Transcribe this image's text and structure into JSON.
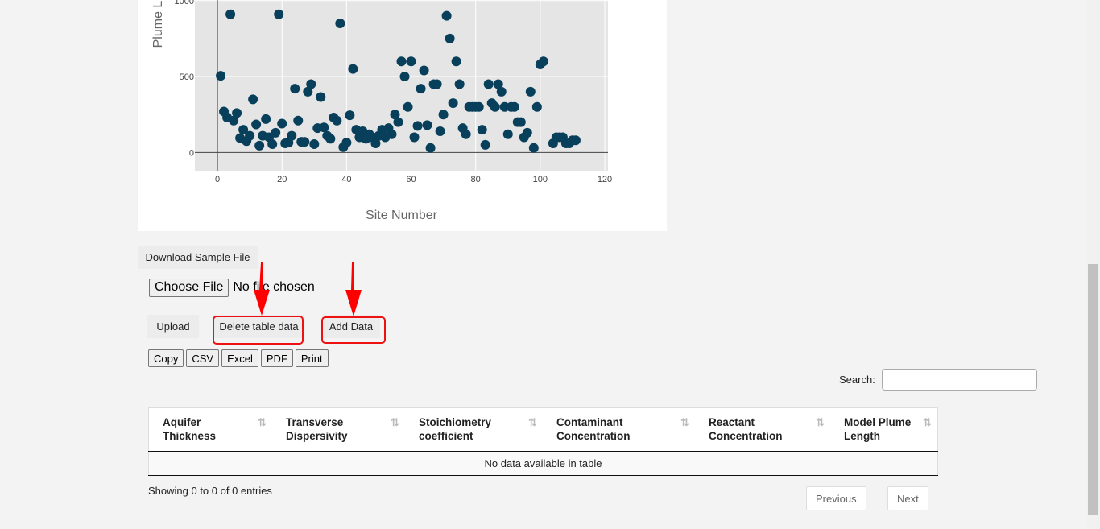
{
  "chart_data": {
    "type": "scatter",
    "xlabel": "Site Number",
    "ylabel": "Plume Length",
    "xlim": [
      -7,
      121
    ],
    "ylim": [
      -120,
      1110
    ],
    "x_ticks": [
      0,
      20,
      40,
      60,
      80,
      100,
      120
    ],
    "y_ticks": [
      0,
      500,
      1000
    ],
    "grid": true,
    "marker_color": "#083f5b",
    "points": [
      [
        1,
        505
      ],
      [
        2,
        270
      ],
      [
        3,
        230
      ],
      [
        4,
        910
      ],
      [
        5,
        210
      ],
      [
        6,
        260
      ],
      [
        7,
        95
      ],
      [
        8,
        150
      ],
      [
        9,
        75
      ],
      [
        10,
        110
      ],
      [
        11,
        350
      ],
      [
        12,
        185
      ],
      [
        13,
        45
      ],
      [
        14,
        110
      ],
      [
        15,
        220
      ],
      [
        16,
        100
      ],
      [
        17,
        55
      ],
      [
        18,
        130
      ],
      [
        19,
        910
      ],
      [
        20,
        190
      ],
      [
        21,
        60
      ],
      [
        22,
        65
      ],
      [
        23,
        110
      ],
      [
        24,
        420
      ],
      [
        25,
        210
      ],
      [
        26,
        70
      ],
      [
        27,
        70
      ],
      [
        28,
        400
      ],
      [
        29,
        450
      ],
      [
        30,
        55
      ],
      [
        31,
        160
      ],
      [
        32,
        365
      ],
      [
        33,
        165
      ],
      [
        34,
        110
      ],
      [
        35,
        90
      ],
      [
        36,
        230
      ],
      [
        37,
        210
      ],
      [
        38,
        850
      ],
      [
        39,
        35
      ],
      [
        40,
        65
      ],
      [
        41,
        245
      ],
      [
        42,
        550
      ],
      [
        43,
        150
      ],
      [
        44,
        100
      ],
      [
        45,
        140
      ],
      [
        46,
        90
      ],
      [
        47,
        120
      ],
      [
        48,
        100
      ],
      [
        49,
        60
      ],
      [
        50,
        110
      ],
      [
        51,
        150
      ],
      [
        52,
        100
      ],
      [
        53,
        160
      ],
      [
        54,
        120
      ],
      [
        55,
        250
      ],
      [
        56,
        200
      ],
      [
        57,
        600
      ],
      [
        58,
        500
      ],
      [
        59,
        300
      ],
      [
        60,
        600
      ],
      [
        61,
        100
      ],
      [
        62,
        175
      ],
      [
        63,
        420
      ],
      [
        64,
        540
      ],
      [
        65,
        180
      ],
      [
        66,
        30
      ],
      [
        67,
        450
      ],
      [
        68,
        450
      ],
      [
        69,
        140
      ],
      [
        70,
        250
      ],
      [
        71,
        900
      ],
      [
        72,
        750
      ],
      [
        73,
        325
      ],
      [
        74,
        600
      ],
      [
        75,
        450
      ],
      [
        76,
        160
      ],
      [
        77,
        120
      ],
      [
        78,
        300
      ],
      [
        79,
        300
      ],
      [
        80,
        300
      ],
      [
        81,
        300
      ],
      [
        82,
        150
      ],
      [
        83,
        50
      ],
      [
        84,
        450
      ],
      [
        85,
        325
      ],
      [
        86,
        300
      ],
      [
        87,
        450
      ],
      [
        88,
        400
      ],
      [
        89,
        300
      ],
      [
        90,
        120
      ],
      [
        91,
        300
      ],
      [
        92,
        300
      ],
      [
        93,
        200
      ],
      [
        94,
        200
      ],
      [
        95,
        100
      ],
      [
        96,
        130
      ],
      [
        97,
        400
      ],
      [
        98,
        30
      ],
      [
        99,
        300
      ],
      [
        100,
        580
      ],
      [
        101,
        600
      ],
      [
        104,
        60
      ],
      [
        105,
        100
      ],
      [
        106,
        100
      ],
      [
        107,
        100
      ],
      [
        108,
        60
      ],
      [
        109,
        60
      ],
      [
        110,
        80
      ],
      [
        111,
        80
      ]
    ]
  },
  "upload": {
    "download_sample_label": "Download Sample File",
    "choose_file_label": "Choose File",
    "file_status": "No file chosen",
    "upload_label": "Upload",
    "delete_label": "Delete table data",
    "add_label": "Add Data"
  },
  "export": {
    "copy": "Copy",
    "csv": "CSV",
    "excel": "Excel",
    "pdf": "PDF",
    "print": "Print"
  },
  "search": {
    "label": "Search:"
  },
  "table": {
    "columns": [
      [
        "Aquifer",
        "Thickness"
      ],
      [
        "Transverse",
        "Dispersivity"
      ],
      [
        "Stoichiometry",
        "coefficient"
      ],
      [
        "Contaminant",
        "Concentration"
      ],
      [
        "Reactant",
        "Concentration"
      ],
      [
        "Model Plume",
        "Length"
      ]
    ],
    "empty_message": "No data available in table"
  },
  "footer": {
    "info": "Showing 0 to 0 of 0 entries",
    "previous": "Previous",
    "next": "Next"
  },
  "colors": {
    "highlight": "#ee1111",
    "arrow": "#ff0000"
  }
}
